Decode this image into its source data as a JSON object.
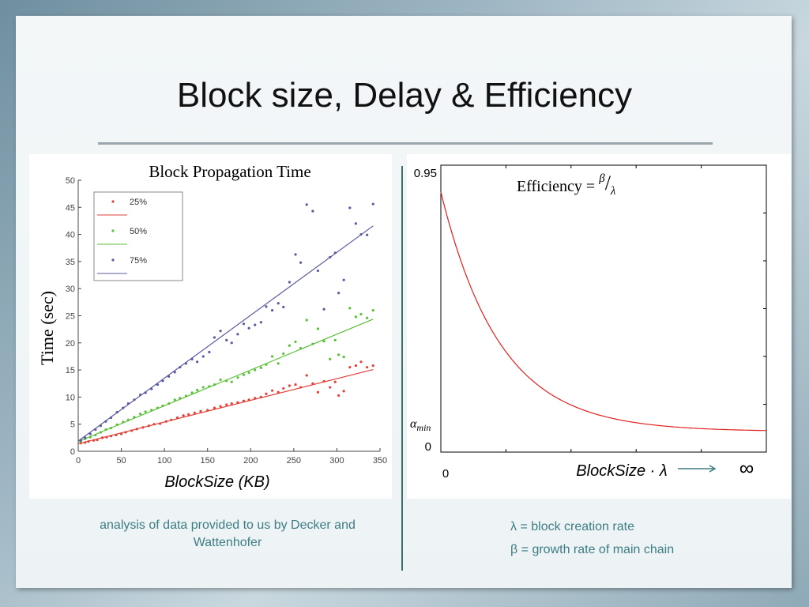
{
  "slide": {
    "title": "Block size, Delay & Efficiency",
    "caption_left": "analysis of data provided to us by Decker and Wattenhofer",
    "legend_right": [
      "λ = block creation rate",
      "β = growth rate of main chain"
    ]
  },
  "colors": {
    "series_25": "#e0413a",
    "series_50": "#5cbf3a",
    "series_75": "#5a5aa0",
    "efficiency_curve": "#e02020",
    "accent_text": "#3d7d83"
  },
  "chart_data": [
    {
      "type": "scatter",
      "title": "Block Propagation Time",
      "xlabel": "BlockSize (KB)",
      "ylabel": "Time (sec)",
      "xlim": [
        0,
        350
      ],
      "ylim": [
        0,
        50
      ],
      "xticks": [
        0,
        50,
        100,
        150,
        200,
        250,
        300,
        350
      ],
      "yticks": [
        0,
        5,
        10,
        15,
        20,
        25,
        30,
        35,
        40,
        45,
        50
      ],
      "legend_placement": "top-left",
      "series": [
        {
          "name": "25%",
          "color_key": "series_25",
          "fit": {
            "intercept": 1.4,
            "slope": 0.04
          },
          "points": [
            [
              3,
              1.5
            ],
            [
              8,
              1.6
            ],
            [
              12,
              1.8
            ],
            [
              18,
              2.0
            ],
            [
              22,
              2.1
            ],
            [
              28,
              2.5
            ],
            [
              33,
              2.6
            ],
            [
              38,
              2.8
            ],
            [
              44,
              3.0
            ],
            [
              50,
              3.2
            ],
            [
              55,
              3.5
            ],
            [
              62,
              3.8
            ],
            [
              68,
              4.1
            ],
            [
              75,
              4.4
            ],
            [
              82,
              4.7
            ],
            [
              88,
              5.0
            ],
            [
              95,
              5.1
            ],
            [
              102,
              5.5
            ],
            [
              108,
              5.8
            ],
            [
              115,
              6.2
            ],
            [
              122,
              6.6
            ],
            [
              128,
              6.8
            ],
            [
              135,
              7.1
            ],
            [
              142,
              7.4
            ],
            [
              150,
              7.6
            ],
            [
              158,
              8.0
            ],
            [
              165,
              8.3
            ],
            [
              172,
              8.6
            ],
            [
              178,
              8.8
            ],
            [
              185,
              9.0
            ],
            [
              192,
              9.3
            ],
            [
              198,
              9.5
            ],
            [
              205,
              9.8
            ],
            [
              212,
              10.0
            ],
            [
              218,
              10.6
            ],
            [
              225,
              11.2
            ],
            [
              232,
              10.9
            ],
            [
              238,
              11.6
            ],
            [
              245,
              12.1
            ],
            [
              252,
              12.3
            ],
            [
              258,
              11.8
            ],
            [
              265,
              14.0
            ],
            [
              272,
              12.5
            ],
            [
              278,
              10.9
            ],
            [
              285,
              12.9
            ],
            [
              292,
              11.8
            ],
            [
              298,
              12.8
            ],
            [
              302,
              10.3
            ],
            [
              308,
              11.1
            ],
            [
              315,
              15.5
            ],
            [
              322,
              15.8
            ],
            [
              328,
              16.5
            ],
            [
              335,
              15.5
            ],
            [
              342,
              15.8
            ]
          ]
        },
        {
          "name": "50%",
          "color_key": "series_50",
          "fit": {
            "intercept": 1.8,
            "slope": 0.066
          },
          "points": [
            [
              3,
              1.8
            ],
            [
              8,
              2.3
            ],
            [
              14,
              2.6
            ],
            [
              20,
              3.0
            ],
            [
              26,
              3.5
            ],
            [
              32,
              4.0
            ],
            [
              38,
              4.3
            ],
            [
              45,
              4.9
            ],
            [
              52,
              5.4
            ],
            [
              58,
              5.8
            ],
            [
              65,
              6.3
            ],
            [
              72,
              6.9
            ],
            [
              78,
              7.3
            ],
            [
              85,
              7.6
            ],
            [
              92,
              8.0
            ],
            [
              98,
              8.4
            ],
            [
              105,
              8.8
            ],
            [
              112,
              9.5
            ],
            [
              118,
              9.8
            ],
            [
              125,
              10.2
            ],
            [
              132,
              10.8
            ],
            [
              138,
              11.3
            ],
            [
              145,
              11.8
            ],
            [
              152,
              12.0
            ],
            [
              158,
              12.3
            ],
            [
              165,
              13.2
            ],
            [
              172,
              13.0
            ],
            [
              178,
              12.8
            ],
            [
              185,
              13.6
            ],
            [
              192,
              14.1
            ],
            [
              198,
              14.5
            ],
            [
              205,
              15.0
            ],
            [
              212,
              15.4
            ],
            [
              218,
              16.0
            ],
            [
              225,
              17.5
            ],
            [
              232,
              16.2
            ],
            [
              238,
              18.0
            ],
            [
              245,
              19.5
            ],
            [
              252,
              20.2
            ],
            [
              258,
              19.0
            ],
            [
              265,
              24.2
            ],
            [
              272,
              19.8
            ],
            [
              278,
              22.6
            ],
            [
              285,
              20.3
            ],
            [
              292,
              17.0
            ],
            [
              298,
              20.5
            ],
            [
              302,
              17.8
            ],
            [
              308,
              17.4
            ],
            [
              315,
              26.4
            ],
            [
              322,
              24.8
            ],
            [
              328,
              25.3
            ],
            [
              335,
              24.6
            ],
            [
              342,
              26.0
            ]
          ]
        },
        {
          "name": "75%",
          "color_key": "series_75",
          "fit": {
            "intercept": 1.9,
            "slope": 0.116
          },
          "points": [
            [
              3,
              2.0
            ],
            [
              8,
              2.5
            ],
            [
              14,
              3.2
            ],
            [
              20,
              4.0
            ],
            [
              26,
              4.7
            ],
            [
              32,
              5.5
            ],
            [
              38,
              6.2
            ],
            [
              45,
              7.2
            ],
            [
              52,
              8.0
            ],
            [
              58,
              8.8
            ],
            [
              65,
              9.5
            ],
            [
              72,
              10.4
            ],
            [
              78,
              10.8
            ],
            [
              85,
              11.5
            ],
            [
              92,
              12.3
            ],
            [
              98,
              13.0
            ],
            [
              105,
              13.8
            ],
            [
              112,
              14.6
            ],
            [
              118,
              15.5
            ],
            [
              125,
              16.2
            ],
            [
              132,
              17.0
            ],
            [
              138,
              16.5
            ],
            [
              145,
              17.5
            ],
            [
              152,
              18.3
            ],
            [
              158,
              21.0
            ],
            [
              165,
              22.2
            ],
            [
              172,
              20.5
            ],
            [
              178,
              20.0
            ],
            [
              185,
              21.6
            ],
            [
              192,
              23.5
            ],
            [
              198,
              22.7
            ],
            [
              205,
              23.3
            ],
            [
              212,
              23.8
            ],
            [
              218,
              26.7
            ],
            [
              225,
              26.0
            ],
            [
              232,
              27.3
            ],
            [
              238,
              26.6
            ],
            [
              245,
              31.2
            ],
            [
              252,
              36.3
            ],
            [
              258,
              34.8
            ],
            [
              265,
              45.5
            ],
            [
              272,
              44.3
            ],
            [
              278,
              33.3
            ],
            [
              285,
              26.2
            ],
            [
              292,
              35.8
            ],
            [
              298,
              36.6
            ],
            [
              302,
              29.2
            ],
            [
              308,
              31.6
            ],
            [
              315,
              44.9
            ],
            [
              322,
              42.0
            ],
            [
              328,
              40.0
            ],
            [
              335,
              39.9
            ],
            [
              342,
              45.6
            ]
          ]
        }
      ]
    },
    {
      "type": "line",
      "title": "",
      "annotation": "Efficiency = β/λ",
      "annotation_lhs": "Efficiency = ",
      "annotation_num": "β",
      "annotation_den": "λ",
      "xlabel": "BlockSize · λ",
      "x_start_label": "0",
      "x_end_label": "∞",
      "y_top_label": "0.95",
      "y_alpha_label": "α",
      "y_alpha_sub": "min",
      "y_zero_label": "0",
      "shape": "exponential-decay",
      "y_start": 0.95,
      "y_floor": 0.1,
      "decay_rate": 5.5
    }
  ]
}
